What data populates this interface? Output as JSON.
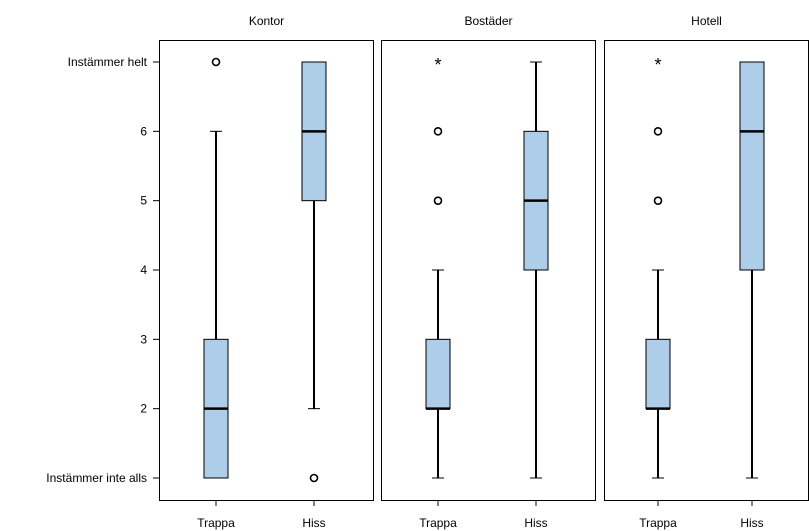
{
  "chart_data": {
    "type": "boxplot",
    "y_axis": {
      "range": [
        1,
        7
      ],
      "ticks": [
        {
          "value": 7,
          "label": "Instämmer helt"
        },
        {
          "value": 6,
          "label": "6"
        },
        {
          "value": 5,
          "label": "5"
        },
        {
          "value": 4,
          "label": "4"
        },
        {
          "value": 3,
          "label": "3"
        },
        {
          "value": 2,
          "label": "2"
        },
        {
          "value": 1,
          "label": "Instämmer inte alls"
        }
      ]
    },
    "categories": [
      "Trappa",
      "Hiss"
    ],
    "box_color": "#aecde9",
    "panels": [
      {
        "title": "Kontor",
        "boxes": [
          {
            "category": "Trappa",
            "whisker_low": 1,
            "q1": 1,
            "median": 2,
            "q3": 3,
            "whisker_high": 6,
            "outliers": [
              {
                "value": 7,
                "marker": "circle"
              }
            ]
          },
          {
            "category": "Hiss",
            "whisker_low": 2,
            "q1": 5,
            "median": 6,
            "q3": 7,
            "whisker_high": 7,
            "outliers": [
              {
                "value": 1,
                "marker": "circle"
              }
            ]
          }
        ]
      },
      {
        "title": "Bostäder",
        "boxes": [
          {
            "category": "Trappa",
            "whisker_low": 1,
            "q1": 2,
            "median": 2,
            "q3": 3,
            "whisker_high": 4,
            "outliers": [
              {
                "value": 5,
                "marker": "circle"
              },
              {
                "value": 6,
                "marker": "circle"
              },
              {
                "value": 7,
                "marker": "star"
              }
            ]
          },
          {
            "category": "Hiss",
            "whisker_low": 1,
            "q1": 4,
            "median": 5,
            "q3": 6,
            "whisker_high": 7,
            "outliers": []
          }
        ]
      },
      {
        "title": "Hotell",
        "boxes": [
          {
            "category": "Trappa",
            "whisker_low": 1,
            "q1": 2,
            "median": 2,
            "q3": 3,
            "whisker_high": 4,
            "outliers": [
              {
                "value": 5,
                "marker": "circle"
              },
              {
                "value": 6,
                "marker": "circle"
              },
              {
                "value": 7,
                "marker": "star"
              }
            ]
          },
          {
            "category": "Hiss",
            "whisker_low": 1,
            "q1": 4,
            "median": 6,
            "q3": 7,
            "whisker_high": 7,
            "outliers": []
          }
        ]
      }
    ]
  }
}
